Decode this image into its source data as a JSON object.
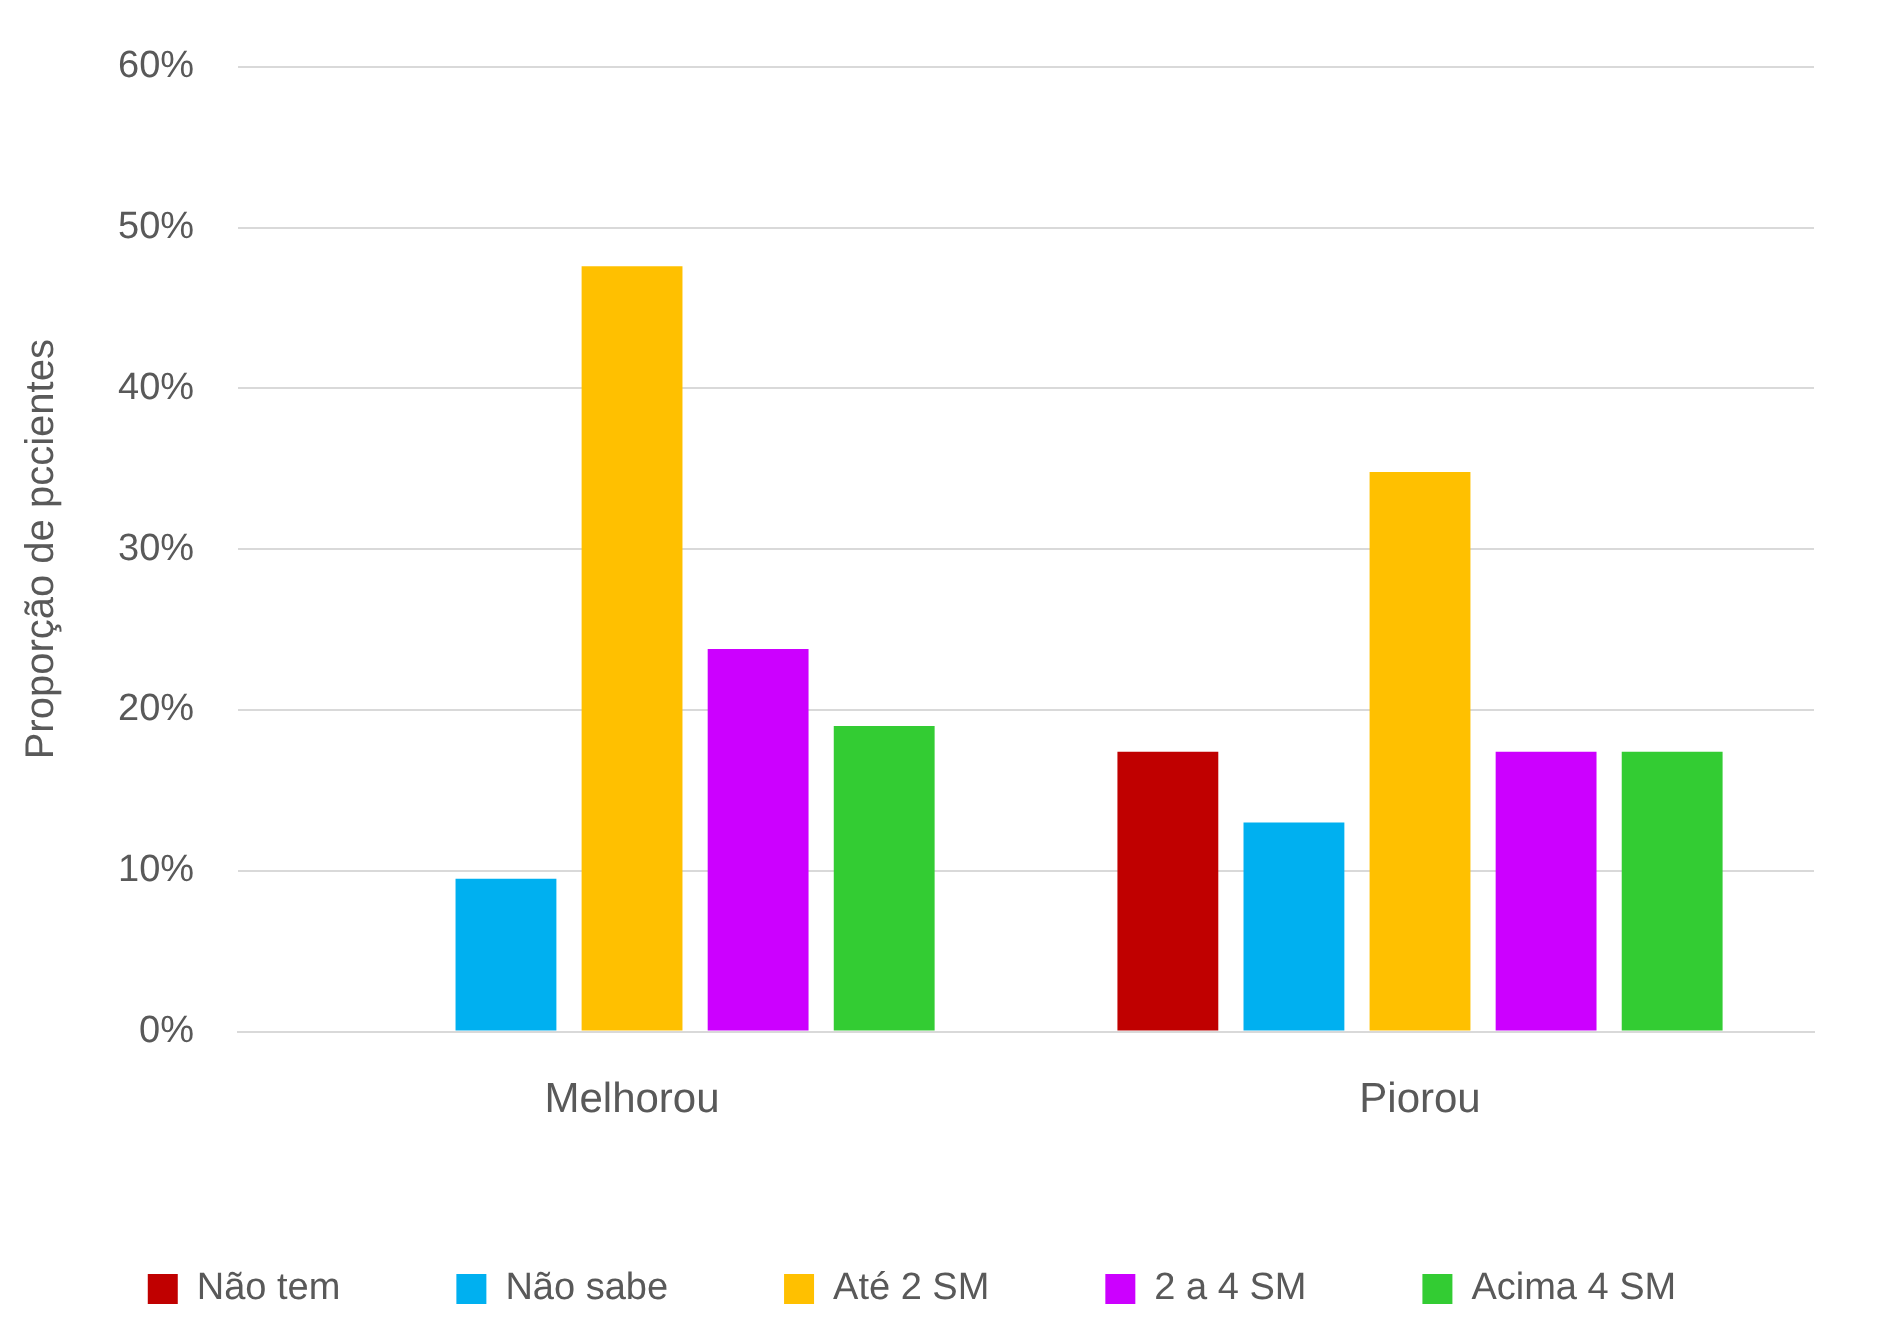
{
  "chart_data": {
    "type": "bar",
    "ylabel": "Proporção de pccientes",
    "categories": [
      "Melhorou",
      "Piorou"
    ],
    "series": [
      {
        "name": "Não tem",
        "color": "#c00000",
        "values": [
          0,
          17.4
        ]
      },
      {
        "name": "Não sabe",
        "color": "#00b0f0",
        "values": [
          9.5,
          13.0
        ]
      },
      {
        "name": "Até 2 SM",
        "color": "#ffc000",
        "values": [
          47.6,
          34.8
        ]
      },
      {
        "name": "2 a 4 SM",
        "color": "#cc00ff",
        "values": [
          23.8,
          17.4
        ]
      },
      {
        "name": "Acima 4 SM",
        "color": "#33cc33",
        "values": [
          19.0,
          17.4
        ]
      }
    ],
    "ylim": [
      0,
      60
    ],
    "yticks": [
      {
        "value": 0,
        "label": "0%"
      },
      {
        "value": 10,
        "label": "10%"
      },
      {
        "value": 20,
        "label": "20%"
      },
      {
        "value": 30,
        "label": "30%"
      },
      {
        "value": 40,
        "label": "40%"
      },
      {
        "value": 50,
        "label": "50%"
      },
      {
        "value": 60,
        "label": "60%"
      }
    ],
    "grid": "y",
    "legend": "bottom"
  }
}
